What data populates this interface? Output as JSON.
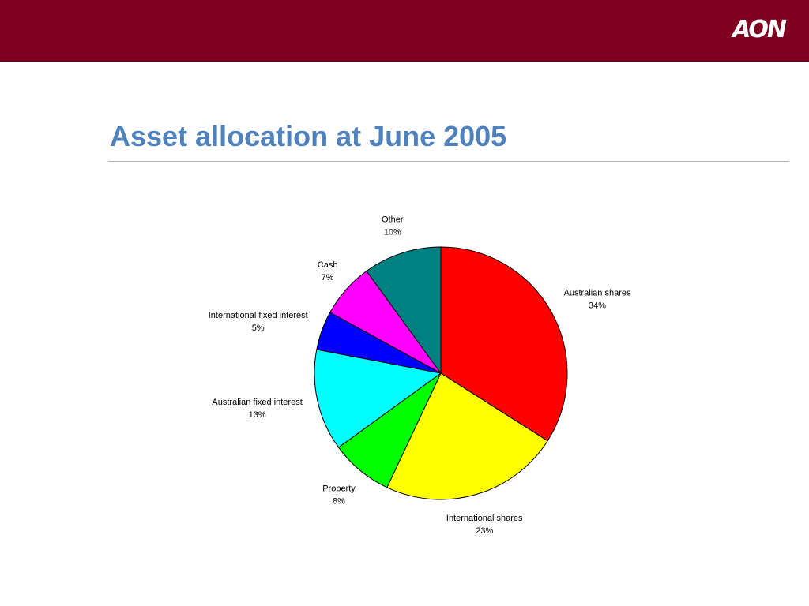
{
  "header": {
    "brand_color": "#800020",
    "logo_text": "AON"
  },
  "slide": {
    "title": "Asset allocation at June 2005",
    "title_color": "#4f81bd"
  },
  "chart_data": {
    "type": "pie",
    "title": "",
    "slices": [
      {
        "label": "Australian shares",
        "value": 34,
        "value_label": "34%",
        "color": "#ff0000"
      },
      {
        "label": "International shares",
        "value": 23,
        "value_label": "23%",
        "color": "#ffff00"
      },
      {
        "label": "Property",
        "value": 8,
        "value_label": "8%",
        "color": "#00ff00"
      },
      {
        "label": "Australian fixed interest",
        "value": 13,
        "value_label": "13%",
        "color": "#00ffff"
      },
      {
        "label": "International fixed interest",
        "value": 5,
        "value_label": "5%",
        "color": "#0000ff"
      },
      {
        "label": "Cash",
        "value": 7,
        "value_label": "7%",
        "color": "#ff00ff"
      },
      {
        "label": "Other",
        "value": 10,
        "value_label": "10%",
        "color": "#008080"
      }
    ],
    "start_angle": "12 o'clock",
    "direction": "clockwise",
    "legend": "none",
    "data_labels": "category and percent outside slices"
  }
}
